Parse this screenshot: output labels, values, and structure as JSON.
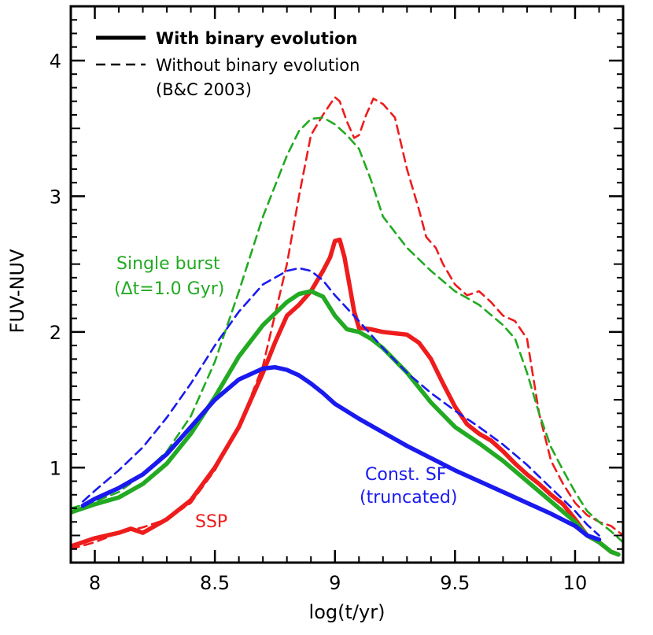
{
  "chart_data": {
    "type": "line",
    "title": "",
    "xlabel": "log(t/yr)",
    "ylabel": "FUV-NUV",
    "xlim": [
      7.9,
      10.2
    ],
    "ylim": [
      0.3,
      4.4
    ],
    "x_ticks": [
      8,
      8.5,
      9,
      9.5,
      10
    ],
    "x_tick_labels": [
      "8",
      "8.5",
      "9",
      "9.5",
      "10"
    ],
    "y_ticks": [
      1,
      2,
      3,
      4
    ],
    "y_tick_labels": [
      "1",
      "2",
      "3",
      "4"
    ],
    "grid": false,
    "legend": {
      "position": "top-left",
      "entries": [
        {
          "label": "With binary evolution",
          "style": "solid"
        },
        {
          "label": "Without binary evolution",
          "style": "dashed"
        },
        {
          "label": "(B&C 2003)",
          "style": "none"
        }
      ]
    },
    "annotations": [
      {
        "id": "single-burst-1",
        "text": "Single burst",
        "color": "#22aa22"
      },
      {
        "id": "single-burst-2",
        "text": "(Δt=1.0 Gyr)",
        "color": "#22aa22"
      },
      {
        "id": "const-sf-1",
        "text": "Const. SF",
        "color": "#1a1aee"
      },
      {
        "id": "const-sf-2",
        "text": "(truncated)",
        "color": "#1a1aee"
      },
      {
        "id": "ssp",
        "text": "SSP",
        "color": "#ee1c1c"
      }
    ],
    "series": [
      {
        "name": "SSP with binary evolution",
        "color": "#ee1c1c",
        "style": "solid",
        "x": [
          7.9,
          8.0,
          8.1,
          8.15,
          8.2,
          8.3,
          8.4,
          8.5,
          8.6,
          8.65,
          8.7,
          8.75,
          8.8,
          8.85,
          8.9,
          8.95,
          8.98,
          9.0,
          9.02,
          9.04,
          9.06,
          9.08,
          9.1,
          9.15,
          9.2,
          9.25,
          9.3,
          9.35,
          9.4,
          9.45,
          9.5,
          9.55,
          9.6,
          9.65,
          9.7,
          9.75,
          9.8,
          9.85,
          9.9,
          9.95,
          10.0,
          10.05,
          10.1,
          10.15,
          10.18
        ],
        "y": [
          0.42,
          0.48,
          0.52,
          0.55,
          0.52,
          0.62,
          0.76,
          1.0,
          1.3,
          1.5,
          1.7,
          1.92,
          2.12,
          2.2,
          2.3,
          2.45,
          2.55,
          2.67,
          2.68,
          2.55,
          2.35,
          2.15,
          2.03,
          2.02,
          2.0,
          1.99,
          1.98,
          1.92,
          1.8,
          1.62,
          1.45,
          1.32,
          1.25,
          1.2,
          1.12,
          1.03,
          0.95,
          0.88,
          0.8,
          0.73,
          0.62,
          0.5,
          0.45,
          0.38,
          0.36
        ]
      },
      {
        "name": "SSP without binary evolution",
        "color": "#ee1c1c",
        "style": "dashed",
        "x": [
          7.9,
          8.0,
          8.1,
          8.2,
          8.3,
          8.4,
          8.5,
          8.6,
          8.7,
          8.8,
          8.85,
          8.9,
          8.95,
          9.0,
          9.02,
          9.05,
          9.08,
          9.1,
          9.13,
          9.16,
          9.2,
          9.25,
          9.3,
          9.35,
          9.38,
          9.42,
          9.45,
          9.5,
          9.55,
          9.6,
          9.65,
          9.7,
          9.75,
          9.8,
          9.85,
          9.9,
          9.95,
          10.0,
          10.05,
          10.1,
          10.15,
          10.2
        ],
        "y": [
          0.4,
          0.45,
          0.52,
          0.56,
          0.62,
          0.74,
          0.98,
          1.3,
          1.75,
          2.5,
          3.0,
          3.45,
          3.6,
          3.73,
          3.7,
          3.55,
          3.43,
          3.45,
          3.6,
          3.72,
          3.68,
          3.58,
          3.2,
          2.9,
          2.7,
          2.62,
          2.5,
          2.35,
          2.27,
          2.3,
          2.22,
          2.12,
          2.08,
          1.95,
          1.4,
          1.05,
          0.88,
          0.74,
          0.65,
          0.6,
          0.57,
          0.5
        ]
      },
      {
        "name": "Single burst with binary evolution",
        "color": "#22aa22",
        "style": "solid",
        "x": [
          7.9,
          8.0,
          8.1,
          8.2,
          8.3,
          8.4,
          8.5,
          8.6,
          8.7,
          8.8,
          8.85,
          8.9,
          8.95,
          9.0,
          9.05,
          9.1,
          9.15,
          9.2,
          9.3,
          9.4,
          9.5,
          9.6,
          9.7,
          9.8,
          9.9,
          10.0,
          10.05,
          10.1,
          10.15,
          10.18
        ],
        "y": [
          0.67,
          0.73,
          0.78,
          0.88,
          1.03,
          1.25,
          1.52,
          1.82,
          2.05,
          2.22,
          2.28,
          2.3,
          2.26,
          2.12,
          2.02,
          2.0,
          1.95,
          1.88,
          1.7,
          1.48,
          1.3,
          1.18,
          1.05,
          0.9,
          0.75,
          0.6,
          0.5,
          0.45,
          0.38,
          0.36
        ]
      },
      {
        "name": "Single burst without binary evolution",
        "color": "#22aa22",
        "style": "dashed",
        "x": [
          7.9,
          8.0,
          8.1,
          8.2,
          8.3,
          8.4,
          8.5,
          8.6,
          8.7,
          8.8,
          8.85,
          8.9,
          8.95,
          9.0,
          9.05,
          9.1,
          9.15,
          9.2,
          9.3,
          9.4,
          9.5,
          9.6,
          9.7,
          9.75,
          9.8,
          9.85,
          9.9,
          9.95,
          10.0,
          10.05,
          10.1,
          10.15,
          10.2
        ],
        "y": [
          0.7,
          0.75,
          0.82,
          0.95,
          1.12,
          1.38,
          1.78,
          2.3,
          2.85,
          3.3,
          3.48,
          3.57,
          3.58,
          3.53,
          3.45,
          3.35,
          3.12,
          2.85,
          2.62,
          2.45,
          2.3,
          2.2,
          2.05,
          1.95,
          1.7,
          1.4,
          1.15,
          0.98,
          0.82,
          0.68,
          0.6,
          0.53,
          0.45
        ]
      },
      {
        "name": "Const. SF with binary evolution",
        "color": "#1a1aee",
        "style": "solid",
        "x": [
          7.95,
          8.0,
          8.1,
          8.2,
          8.3,
          8.4,
          8.5,
          8.6,
          8.7,
          8.75,
          8.8,
          8.85,
          8.9,
          8.95,
          9.0,
          9.1,
          9.2,
          9.3,
          9.4,
          9.5,
          9.6,
          9.7,
          9.8,
          9.9,
          10.0,
          10.05,
          10.1
        ],
        "y": [
          0.72,
          0.77,
          0.85,
          0.95,
          1.1,
          1.3,
          1.5,
          1.65,
          1.73,
          1.74,
          1.72,
          1.68,
          1.62,
          1.55,
          1.47,
          1.36,
          1.26,
          1.16,
          1.07,
          0.98,
          0.9,
          0.82,
          0.74,
          0.66,
          0.57,
          0.5,
          0.47
        ]
      },
      {
        "name": "Const. SF without binary evolution",
        "color": "#1a1aee",
        "style": "dashed",
        "x": [
          7.95,
          8.0,
          8.1,
          8.2,
          8.3,
          8.4,
          8.5,
          8.6,
          8.7,
          8.8,
          8.85,
          8.9,
          8.95,
          9.0,
          9.1,
          9.2,
          9.3,
          9.4,
          9.5,
          9.6,
          9.7,
          9.8,
          9.9,
          10.0,
          10.05,
          10.1
        ],
        "y": [
          0.75,
          0.83,
          0.98,
          1.15,
          1.37,
          1.62,
          1.9,
          2.15,
          2.35,
          2.45,
          2.47,
          2.45,
          2.38,
          2.27,
          2.08,
          1.88,
          1.7,
          1.55,
          1.42,
          1.3,
          1.17,
          1.02,
          0.85,
          0.68,
          0.58,
          0.5
        ]
      }
    ]
  }
}
